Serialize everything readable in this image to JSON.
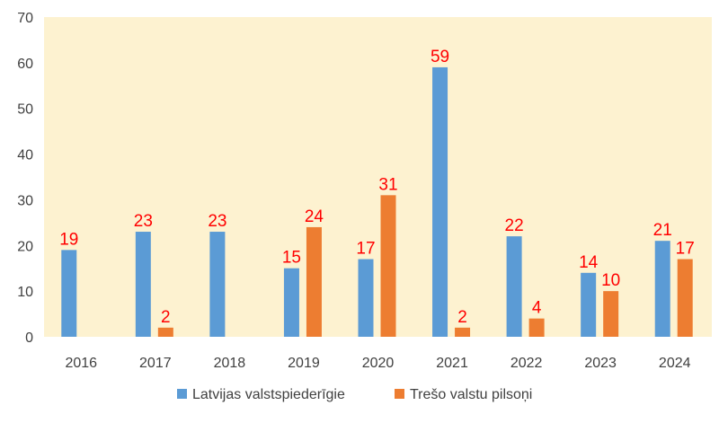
{
  "chart_data": {
    "type": "bar",
    "title": "",
    "xlabel": "",
    "ylabel": "",
    "categories": [
      "2016",
      "2017",
      "2018",
      "2019",
      "2020",
      "2021",
      "2022",
      "2023",
      "2024"
    ],
    "series": [
      {
        "name": "Latvijas valstspiederīgie",
        "color": "#5b9bd5",
        "values": [
          19,
          23,
          23,
          15,
          17,
          59,
          22,
          14,
          21
        ]
      },
      {
        "name": "Trešo valstu pilsoņi",
        "color": "#ed7d31",
        "values": [
          null,
          2,
          null,
          24,
          31,
          2,
          4,
          10,
          17
        ]
      }
    ],
    "ylim": [
      0,
      70
    ],
    "yticks": [
      0,
      10,
      20,
      30,
      40,
      50,
      60,
      70
    ],
    "grid": false,
    "legend_position": "bottom",
    "plot_background": "#fdf2d0",
    "data_label_color": "#ff0000"
  }
}
